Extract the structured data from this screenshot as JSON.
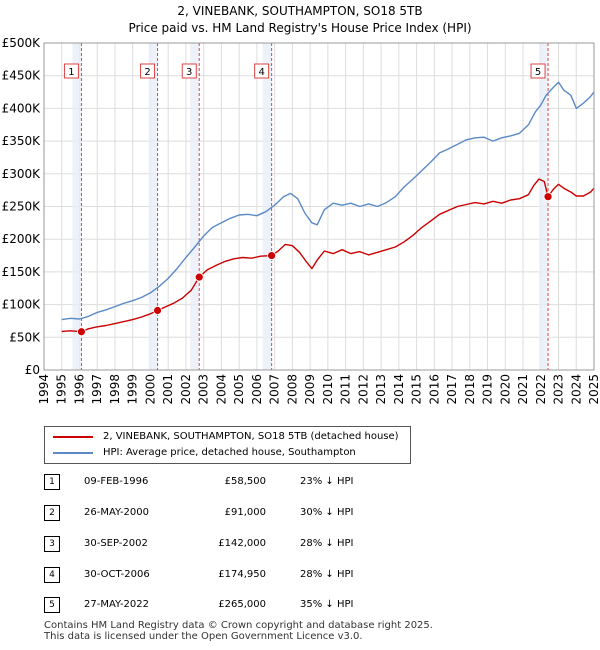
{
  "chart_data": {
    "type": "line",
    "title": "2, VINEBANK, SOUTHAMPTON, SO18 5TB",
    "subtitle": "Price paid vs. HM Land Registry's House Price Index (HPI)",
    "xlim": [
      1994,
      2025
    ],
    "ylim": [
      0,
      500000
    ],
    "y_ticks": [
      0,
      50000,
      100000,
      150000,
      200000,
      250000,
      300000,
      350000,
      400000,
      450000,
      500000
    ],
    "y_tick_labels": [
      "£0",
      "£50K",
      "£100K",
      "£150K",
      "£200K",
      "£250K",
      "£300K",
      "£350K",
      "£400K",
      "£450K",
      "£500K"
    ],
    "x_ticks": [
      1994,
      1995,
      1996,
      1997,
      1998,
      1999,
      2000,
      2001,
      2002,
      2003,
      2004,
      2005,
      2006,
      2007,
      2008,
      2009,
      2010,
      2011,
      2012,
      2013,
      2014,
      2015,
      2016,
      2017,
      2018,
      2019,
      2020,
      2021,
      2022,
      2023,
      2024,
      2025
    ],
    "grid": true,
    "series": [
      {
        "name": "2, VINEBANK, SOUTHAMPTON, SO18 5TB (detached house)",
        "color": "#cc0000",
        "x": [
          1995.0,
          1995.5,
          1996.11,
          1996.5,
          1997.0,
          1997.5,
          1998.0,
          1998.5,
          1999.0,
          1999.5,
          2000.0,
          2000.4,
          2000.8,
          2001.3,
          2001.8,
          2002.3,
          2002.75,
          2003.2,
          2003.7,
          2004.2,
          2004.7,
          2005.2,
          2005.7,
          2006.2,
          2006.83,
          2007.2,
          2007.6,
          2008.0,
          2008.4,
          2008.8,
          2009.1,
          2009.4,
          2009.8,
          2010.3,
          2010.8,
          2011.3,
          2011.8,
          2012.3,
          2012.8,
          2013.3,
          2013.8,
          2014.3,
          2014.8,
          2015.3,
          2015.8,
          2016.3,
          2016.8,
          2017.3,
          2017.8,
          2018.3,
          2018.8,
          2019.3,
          2019.8,
          2020.3,
          2020.8,
          2021.3,
          2021.6,
          2021.9,
          2022.2,
          2022.41,
          2022.7,
          2023.0,
          2023.3,
          2023.7,
          2024.0,
          2024.4,
          2024.8,
          2025.0
        ],
        "values": [
          59000,
          60000,
          58500,
          63000,
          66000,
          68000,
          71000,
          74000,
          77000,
          81000,
          86000,
          91000,
          96000,
          102000,
          110000,
          122000,
          142000,
          153000,
          160000,
          166000,
          170000,
          172000,
          171000,
          174000,
          174950,
          182000,
          192000,
          190000,
          180000,
          165000,
          155000,
          168000,
          182000,
          178000,
          184000,
          178000,
          181000,
          176000,
          180000,
          184000,
          188000,
          196000,
          206000,
          218000,
          228000,
          238000,
          244000,
          250000,
          253000,
          256000,
          254000,
          258000,
          255000,
          260000,
          262000,
          268000,
          282000,
          292000,
          288000,
          265000,
          276000,
          284000,
          278000,
          272000,
          266000,
          266000,
          272000,
          278000
        ]
      },
      {
        "name": "HPI: Average price, detached house, Southampton",
        "color": "#5a8ac6",
        "x": [
          1995.0,
          1995.5,
          1996.0,
          1996.5,
          1997.0,
          1997.5,
          1998.0,
          1998.5,
          1999.0,
          1999.5,
          2000.0,
          2000.5,
          2001.0,
          2001.5,
          2002.0,
          2002.5,
          2003.0,
          2003.5,
          2004.0,
          2004.5,
          2005.0,
          2005.5,
          2006.0,
          2006.5,
          2007.0,
          2007.5,
          2007.9,
          2008.3,
          2008.7,
          2009.1,
          2009.4,
          2009.8,
          2010.3,
          2010.8,
          2011.3,
          2011.8,
          2012.3,
          2012.8,
          2013.3,
          2013.8,
          2014.3,
          2014.8,
          2015.3,
          2015.8,
          2016.3,
          2016.8,
          2017.3,
          2017.8,
          2018.3,
          2018.8,
          2019.3,
          2019.8,
          2020.3,
          2020.8,
          2021.3,
          2021.7,
          2022.0,
          2022.3,
          2022.7,
          2023.0,
          2023.3,
          2023.7,
          2024.0,
          2024.4,
          2024.8,
          2025.0
        ],
        "values": [
          77000,
          79000,
          78000,
          82000,
          88000,
          92000,
          97000,
          102000,
          106000,
          111000,
          118000,
          128000,
          140000,
          155000,
          172000,
          188000,
          205000,
          218000,
          225000,
          232000,
          237000,
          238000,
          236000,
          242000,
          252000,
          265000,
          270000,
          262000,
          240000,
          225000,
          222000,
          245000,
          255000,
          252000,
          255000,
          250000,
          254000,
          250000,
          256000,
          265000,
          280000,
          292000,
          305000,
          318000,
          332000,
          338000,
          345000,
          352000,
          355000,
          356000,
          350000,
          355000,
          358000,
          362000,
          375000,
          395000,
          405000,
          420000,
          432000,
          440000,
          428000,
          420000,
          400000,
          408000,
          418000,
          425000
        ]
      }
    ],
    "sales": [
      {
        "label": "1",
        "x": 1996.11,
        "value": 58500
      },
      {
        "label": "2",
        "x": 2000.4,
        "value": 91000
      },
      {
        "label": "3",
        "x": 2002.75,
        "value": 142000
      },
      {
        "label": "4",
        "x": 2006.83,
        "value": 174950
      },
      {
        "label": "5",
        "x": 2022.41,
        "value": 265000
      }
    ]
  },
  "legend": {
    "property_label": "2, VINEBANK, SOUTHAMPTON, SO18 5TB (detached house)",
    "hpi_label": "HPI: Average price, detached house, Southampton"
  },
  "transactions": [
    {
      "num": "1",
      "date": "09-FEB-1996",
      "price": "£58,500",
      "hpi": "23% ↓ HPI"
    },
    {
      "num": "2",
      "date": "26-MAY-2000",
      "price": "£91,000",
      "hpi": "30% ↓ HPI"
    },
    {
      "num": "3",
      "date": "30-SEP-2002",
      "price": "£142,000",
      "hpi": "28% ↓ HPI"
    },
    {
      "num": "4",
      "date": "30-OCT-2006",
      "price": "£174,950",
      "hpi": "28% ↓ HPI"
    },
    {
      "num": "5",
      "date": "27-MAY-2022",
      "price": "£265,000",
      "hpi": "35% ↓ HPI"
    }
  ],
  "footer": {
    "line1": "Contains HM Land Registry data © Crown copyright and database right 2025.",
    "line2": "This data is licensed under the Open Government Licence v3.0."
  }
}
